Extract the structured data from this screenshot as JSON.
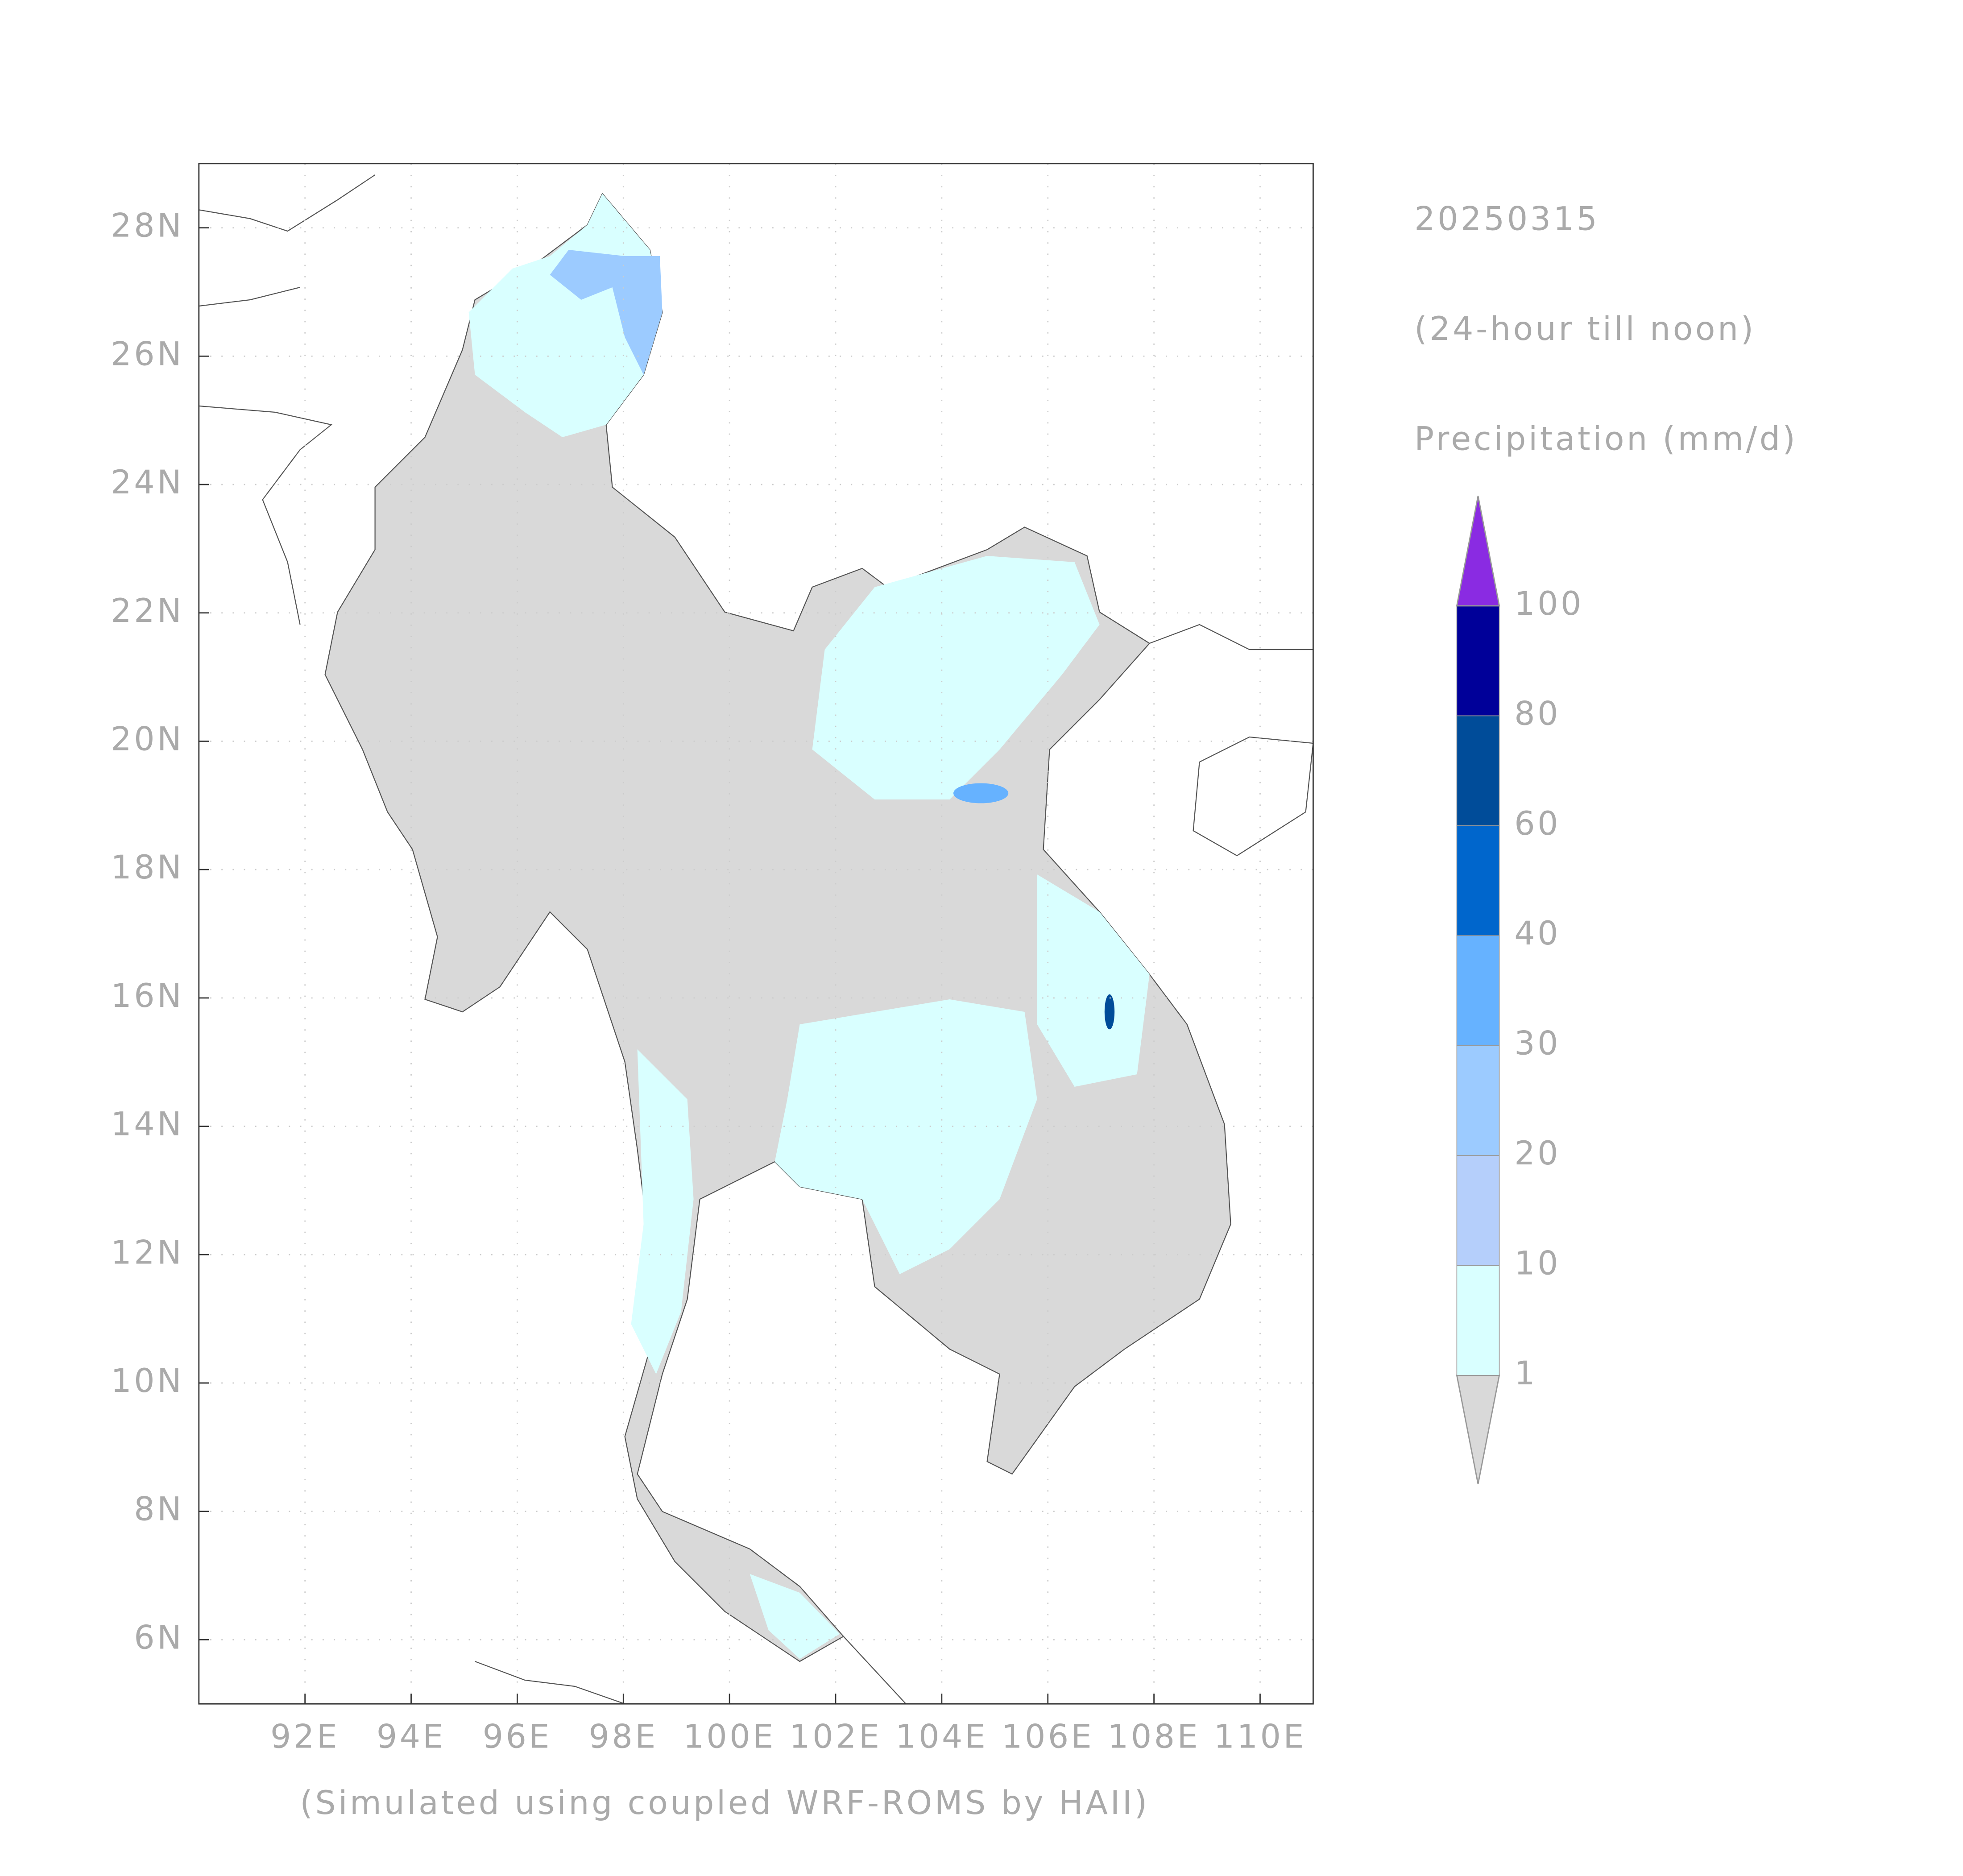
{
  "map": {
    "date": "20250315",
    "period": "(24-hour till noon)",
    "variable": "Precipitation (mm/d)",
    "footer": "(Simulated using coupled WRF-ROMS by HAII)",
    "xlim": [
      90,
      111
    ],
    "ylim": [
      5,
      29
    ],
    "xticks": [
      {
        "value": 92,
        "label": "92E"
      },
      {
        "value": 94,
        "label": "94E"
      },
      {
        "value": 96,
        "label": "96E"
      },
      {
        "value": 98,
        "label": "98E"
      },
      {
        "value": 100,
        "label": "100E"
      },
      {
        "value": 102,
        "label": "102E"
      },
      {
        "value": 104,
        "label": "104E"
      },
      {
        "value": 106,
        "label": "106E"
      },
      {
        "value": 108,
        "label": "108E"
      },
      {
        "value": 110,
        "label": "110E"
      }
    ],
    "yticks": [
      {
        "value": 6,
        "label": "6N"
      },
      {
        "value": 8,
        "label": "8N"
      },
      {
        "value": 10,
        "label": "10N"
      },
      {
        "value": 12,
        "label": "12N"
      },
      {
        "value": 14,
        "label": "14N"
      },
      {
        "value": 16,
        "label": "16N"
      },
      {
        "value": 18,
        "label": "18N"
      },
      {
        "value": 20,
        "label": "20N"
      },
      {
        "value": 22,
        "label": "22N"
      },
      {
        "value": 24,
        "label": "24N"
      },
      {
        "value": 26,
        "label": "26N"
      },
      {
        "value": 28,
        "label": "28N"
      }
    ],
    "grid": true,
    "colorbar": {
      "levels": [
        1,
        10,
        20,
        30,
        40,
        60,
        80,
        100
      ],
      "colors": [
        "#d9d9d9",
        "#d9ffff",
        "#b5cffb",
        "#9ccbff",
        "#66b2ff",
        "#0066cc",
        "#004c99",
        "#000099",
        "#8a2be2"
      ]
    }
  }
}
